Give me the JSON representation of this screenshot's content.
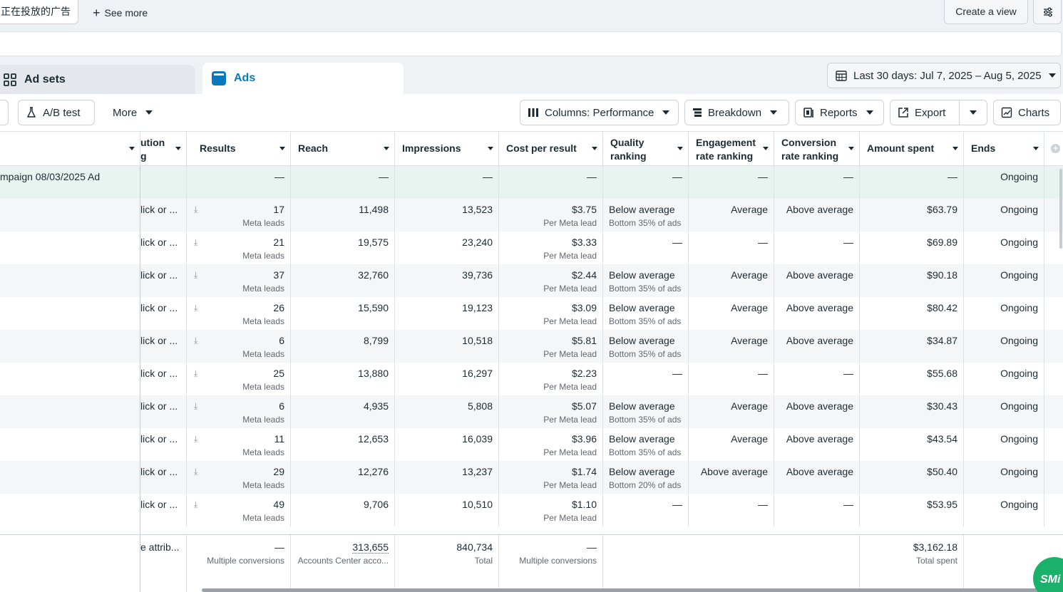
{
  "topbar": {
    "filter_chip": "正在投放的广告",
    "see_more": "See more",
    "create_view": "Create a view"
  },
  "tabs": {
    "adsets": "Ad sets",
    "ads": "Ads"
  },
  "date_range": "Last 30 days: Jul 7, 2025 – Aug 5, 2025",
  "toolbar": {
    "ab_test": "A/B test",
    "more": "More",
    "columns": "Columns: Performance",
    "breakdown": "Breakdown",
    "reports": "Reports",
    "export": "Export",
    "charts": "Charts"
  },
  "table": {
    "headers": {
      "attribution": "ution\ng",
      "results": "Results",
      "reach": "Reach",
      "impressions": "Impressions",
      "cost_per_result": "Cost per result",
      "quality_ranking": "Quality ranking",
      "engagement_ranking": "Engagement rate ranking",
      "conversion_ranking": "Conversion rate ranking",
      "amount_spent": "Amount spent",
      "ends": "Ends"
    },
    "total_row": {
      "name": "mpaign 08/03/2025 Ad",
      "results": "—",
      "reach": "—",
      "impressions": "—",
      "cost": "—",
      "quality": "—",
      "engagement": "—",
      "conversion": "—",
      "amount": "—",
      "ends": "Ongoing"
    },
    "rows": [
      {
        "attr": "lick or ...",
        "results": "17",
        "results_sub": "Meta leads",
        "reach": "11,498",
        "impressions": "13,523",
        "cost": "$3.75",
        "cost_sub": "Per Meta lead",
        "quality": "Below average",
        "quality_sub": "Bottom 35% of ads",
        "engagement": "Average",
        "conversion": "Above average",
        "amount": "$63.79",
        "ends": "Ongoing"
      },
      {
        "attr": "lick or ...",
        "results": "21",
        "results_sub": "Meta leads",
        "reach": "19,575",
        "impressions": "23,240",
        "cost": "$3.33",
        "cost_sub": "Per Meta lead",
        "quality": "—",
        "quality_sub": "",
        "engagement": "—",
        "conversion": "—",
        "amount": "$69.89",
        "ends": "Ongoing"
      },
      {
        "attr": "lick or ...",
        "results": "37",
        "results_sub": "Meta leads",
        "reach": "32,760",
        "impressions": "39,736",
        "cost": "$2.44",
        "cost_sub": "Per Meta lead",
        "quality": "Below average",
        "quality_sub": "Bottom 35% of ads",
        "engagement": "Average",
        "conversion": "Above average",
        "amount": "$90.18",
        "ends": "Ongoing"
      },
      {
        "attr": "lick or ...",
        "results": "26",
        "results_sub": "Meta leads",
        "reach": "15,590",
        "impressions": "19,123",
        "cost": "$3.09",
        "cost_sub": "Per Meta lead",
        "quality": "Below average",
        "quality_sub": "Bottom 35% of ads",
        "engagement": "Average",
        "conversion": "Above average",
        "amount": "$80.42",
        "ends": "Ongoing"
      },
      {
        "attr": "lick or ...",
        "results": "6",
        "results_sub": "Meta leads",
        "reach": "8,799",
        "impressions": "10,518",
        "cost": "$5.81",
        "cost_sub": "Per Meta lead",
        "quality": "Below average",
        "quality_sub": "Bottom 35% of ads",
        "engagement": "Average",
        "conversion": "Above average",
        "amount": "$34.87",
        "ends": "Ongoing"
      },
      {
        "attr": "lick or ...",
        "results": "25",
        "results_sub": "Meta leads",
        "reach": "13,880",
        "impressions": "16,297",
        "cost": "$2.23",
        "cost_sub": "Per Meta lead",
        "quality": "—",
        "quality_sub": "",
        "engagement": "—",
        "conversion": "—",
        "amount": "$55.68",
        "ends": "Ongoing"
      },
      {
        "attr": "lick or ...",
        "results": "6",
        "results_sub": "Meta leads",
        "reach": "4,935",
        "impressions": "5,808",
        "cost": "$5.07",
        "cost_sub": "Per Meta lead",
        "quality": "Below average",
        "quality_sub": "Bottom 35% of ads",
        "engagement": "Average",
        "conversion": "Above average",
        "amount": "$30.43",
        "ends": "Ongoing"
      },
      {
        "attr": "lick or ...",
        "results": "11",
        "results_sub": "Meta leads",
        "reach": "12,653",
        "impressions": "16,039",
        "cost": "$3.96",
        "cost_sub": "Per Meta lead",
        "quality": "Below average",
        "quality_sub": "Bottom 35% of ads",
        "engagement": "Average",
        "conversion": "Above average",
        "amount": "$43.54",
        "ends": "Ongoing"
      },
      {
        "attr": "lick or ...",
        "results": "29",
        "results_sub": "Meta leads",
        "reach": "12,276",
        "impressions": "13,237",
        "cost": "$1.74",
        "cost_sub": "Per Meta lead",
        "quality": "Below average",
        "quality_sub": "Bottom 20% of ads",
        "engagement": "Above average",
        "conversion": "Above average",
        "amount": "$50.40",
        "ends": "Ongoing"
      },
      {
        "attr": "lick or ...",
        "results": "49",
        "results_sub": "Meta leads",
        "reach": "9,706",
        "impressions": "10,510",
        "cost": "$1.10",
        "cost_sub": "Per Meta lead",
        "quality": "—",
        "quality_sub": "",
        "engagement": "—",
        "conversion": "—",
        "amount": "$53.95",
        "ends": "Ongoing"
      }
    ],
    "footer": {
      "attr": "e attrib...",
      "results": "—",
      "results_sub": "Multiple conversions",
      "reach": "313,655",
      "reach_sub": "Accounts Center acco...",
      "impressions": "840,734",
      "impressions_sub": "Total",
      "cost": "—",
      "cost_sub": "Multiple conversions",
      "amount": "$3,162.18",
      "amount_sub": "Total spent"
    }
  },
  "chat_bubble": "SMi",
  "colors": {
    "accent": "#0a78be",
    "total_row_bg": "#e8f4ef",
    "chat_green": "#1ab26b"
  }
}
